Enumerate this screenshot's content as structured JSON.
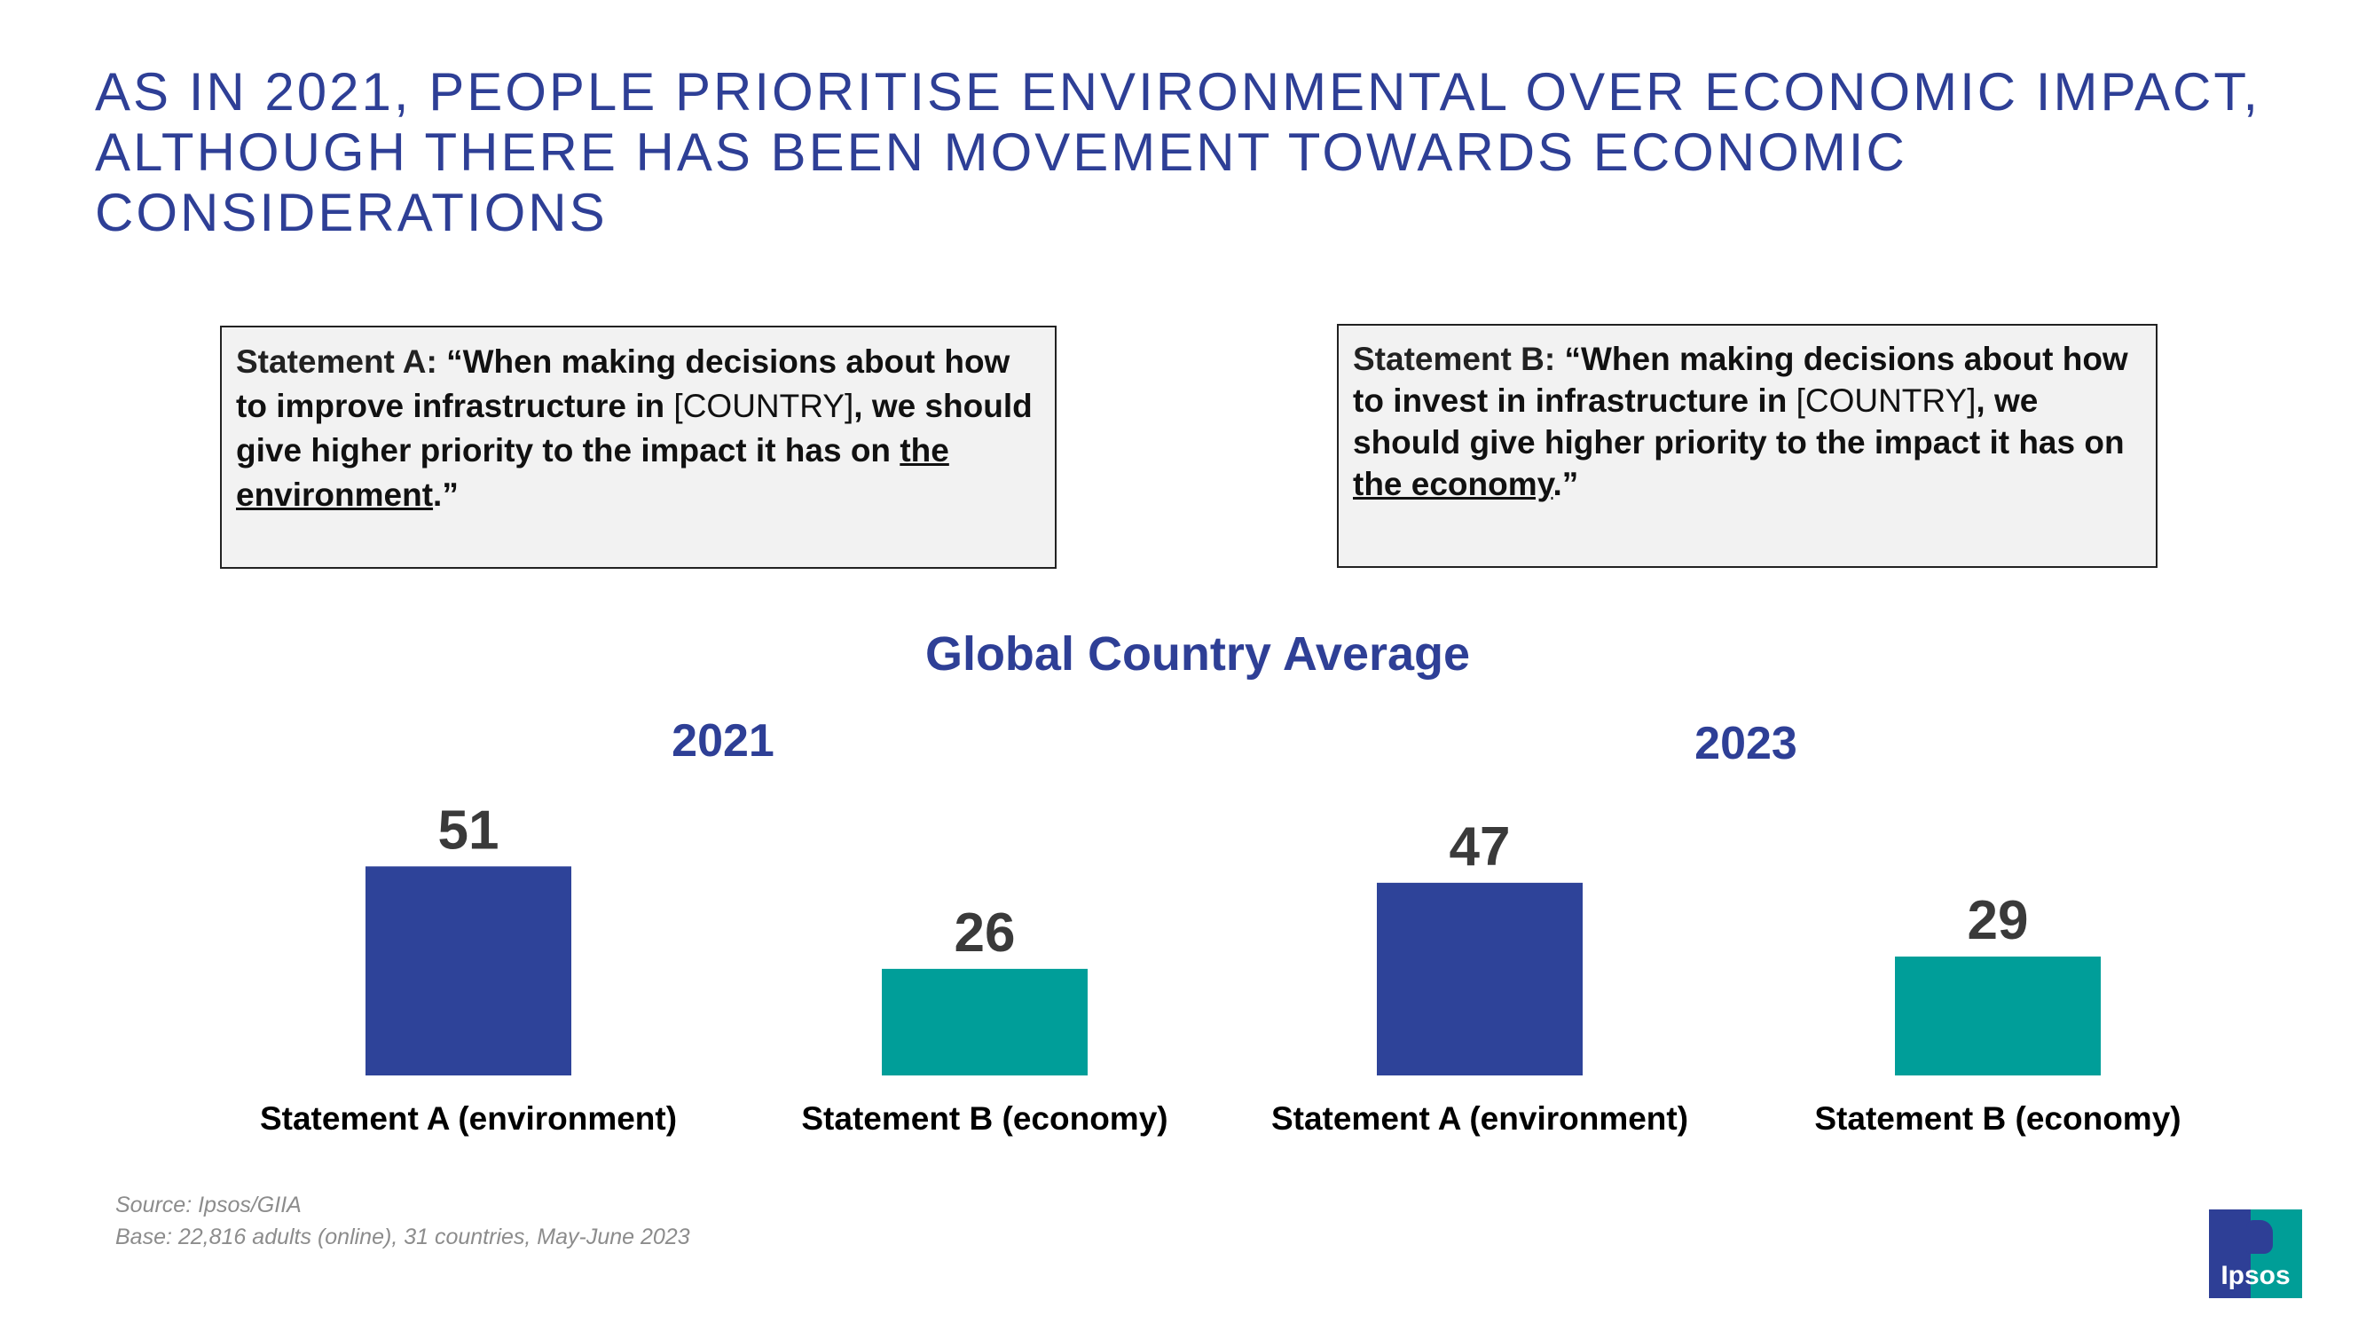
{
  "title": "AS IN 2021, PEOPLE PRIORITISE ENVIRONMENTAL OVER ECONOMIC IMPACT, ALTHOUGH THERE HAS BEEN MOVEMENT TOWARDS ECONOMIC CONSIDERATIONS",
  "statement_a": {
    "lead": "Statement A: ",
    "text1": "“When making decisions about how to improve infrastructure in ",
    "country": "[COUNTRY]",
    "text2": ", we should give higher priority to the impact it has on ",
    "underlined": "the environment",
    "end": ".”"
  },
  "statement_b": {
    "lead": "Statement B: ",
    "text1": "“When making decisions about how to invest in infrastructure in ",
    "country": "[COUNTRY]",
    "text2": ", we should give higher priority to the impact it has on ",
    "underlined": "the economy",
    "end": ".”"
  },
  "chart_data": {
    "type": "bar",
    "title": "Global Country Average",
    "groups": [
      {
        "name": "2021",
        "categories": [
          "Statement A (environment)",
          "Statement B (economy)"
        ],
        "values": [
          51,
          26
        ]
      },
      {
        "name": "2023",
        "categories": [
          "Statement A (environment)",
          "Statement B (economy)"
        ],
        "values": [
          47,
          29
        ]
      }
    ],
    "colors": [
      "#2e4399",
      "#009e99"
    ],
    "grid": false,
    "legend": "none"
  },
  "footnote": {
    "source": "Source: Ipsos/GIIA",
    "base": "Base: 22,816 adults (online), 31 countries, May-June 2023"
  },
  "logo": {
    "text": "Ipsos"
  }
}
